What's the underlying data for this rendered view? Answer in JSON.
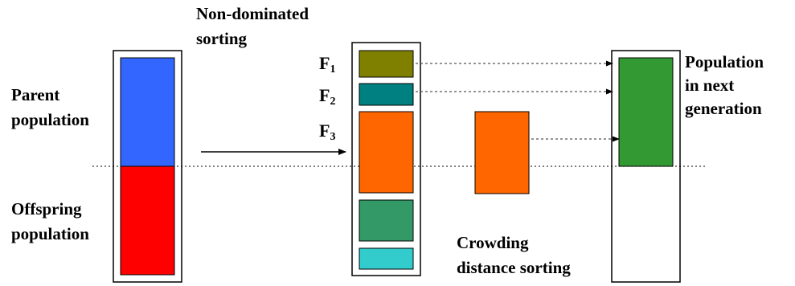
{
  "labels": {
    "parent_line1": "Parent",
    "parent_line2": "population",
    "offspring_line1": "Offspring",
    "offspring_line2": "population",
    "sorting_line1": "Non-dominated",
    "sorting_line2": "sorting",
    "next_line1": "Population",
    "next_line2": "in next",
    "next_line3": "generation",
    "crowding_line1": "Crowding",
    "crowding_line2": "distance sorting"
  },
  "fronts": [
    {
      "letter": "F",
      "index": "1"
    },
    {
      "letter": "F",
      "index": "2"
    },
    {
      "letter": "F",
      "index": "3"
    }
  ],
  "colors": {
    "parent": "#3366ff",
    "offspring": "#ff0000",
    "front1": "#808000",
    "front2": "#008080",
    "front3": "#ff6600",
    "front4": "#339966",
    "front5": "#33cccc",
    "next_generation": "#339933",
    "outline": "#000000"
  }
}
